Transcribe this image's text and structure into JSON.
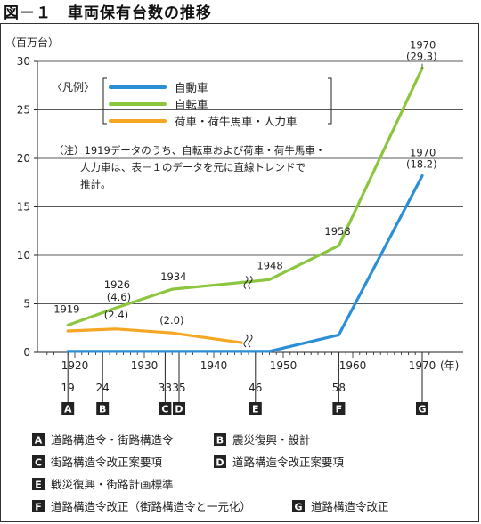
{
  "figure": {
    "title": "図－１　車両保有台数の推移",
    "unit_label": "（百万台）",
    "x_unit_label": "(年)"
  },
  "legend": {
    "open_bracket": "〈凡例〉",
    "items": [
      {
        "label": "自動車",
        "color": "#2a8fd6"
      },
      {
        "label": "自転車",
        "color": "#8cc63f"
      },
      {
        "label": "荷車・荷牛馬車・人力車",
        "color": "#f5a623"
      }
    ]
  },
  "note": {
    "lines": [
      "（注）1919データのうち、自転車および荷車・荷牛馬車・",
      "人力車は、表－１のデータを元に直線トレンドで",
      "推計。"
    ]
  },
  "chart_data": {
    "type": "line",
    "xlim": [
      1915,
      1972
    ],
    "ylim": [
      0,
      30
    ],
    "y_ticks": [
      0,
      5,
      10,
      15,
      20,
      25,
      30
    ],
    "x_ticks": [
      1920,
      1930,
      1940,
      1950,
      1960,
      1970
    ],
    "series": [
      {
        "name": "自動車",
        "color": "#2a8fd6",
        "x": [
          1919,
          1944,
          1948,
          1958,
          1970
        ],
        "y": [
          0.1,
          0.1,
          0.1,
          1.8,
          18.2
        ]
      },
      {
        "name": "自転車",
        "color": "#8cc63f",
        "x": [
          1919,
          1926,
          1934,
          1944,
          1948,
          1958,
          1970
        ],
        "y": [
          2.8,
          4.6,
          6.5,
          7.2,
          7.5,
          11.0,
          29.3
        ]
      },
      {
        "name": "荷車・荷牛馬車・人力車",
        "color": "#f5a623",
        "x": [
          1919,
          1926,
          1934,
          1944
        ],
        "y": [
          2.2,
          2.4,
          2.0,
          1.0
        ]
      }
    ],
    "annotations": [
      {
        "text": "1919",
        "x": 1919,
        "y": 2.8
      },
      {
        "text": "1926",
        "x": 1926,
        "y": 4.6
      },
      {
        "text": "(4.6)",
        "x": 1926,
        "y": 4.6
      },
      {
        "text": "1934",
        "x": 1934,
        "y": 6.5
      },
      {
        "text": "1948",
        "x": 1948,
        "y": 7.5
      },
      {
        "text": "1958",
        "x": 1958,
        "y": 11.0
      },
      {
        "text": "1970",
        "x": 1970,
        "y": 29.3
      },
      {
        "text": "(29.3)",
        "x": 1970,
        "y": 29.3
      },
      {
        "text": "1970",
        "x": 1970,
        "y": 18.2
      },
      {
        "text": "(18.2)",
        "x": 1970,
        "y": 18.2
      },
      {
        "text": "(2.4)",
        "x": 1926,
        "y": 2.4
      },
      {
        "text": "(2.0)",
        "x": 1934,
        "y": 2.0
      }
    ],
    "events": [
      {
        "year": 1919,
        "year_label": "19",
        "letter": "A"
      },
      {
        "year": 1924,
        "year_label": "24",
        "letter": "B"
      },
      {
        "year": 1933,
        "year_label": "33",
        "letter": "C"
      },
      {
        "year": 1935,
        "year_label": "35",
        "letter": "D"
      },
      {
        "year": 1946,
        "year_label": "46",
        "letter": "E"
      },
      {
        "year": 1958,
        "year_label": "58",
        "letter": "F"
      },
      {
        "year": 1970,
        "year_label": "",
        "letter": "G"
      }
    ]
  },
  "events_legend": [
    [
      {
        "letter": "A",
        "text": "道路構造令・街路構造令"
      },
      {
        "letter": "B",
        "text": "震災復興・設計"
      }
    ],
    [
      {
        "letter": "C",
        "text": "街路構造令改正案要項"
      },
      {
        "letter": "D",
        "text": "道路構造令改正案要項"
      }
    ],
    [
      {
        "letter": "E",
        "text": "戦災復興・街路計画標準"
      }
    ],
    [
      {
        "letter": "F",
        "text": "道路構造令改正（街路構造令と一元化）"
      },
      {
        "letter": "G",
        "text": "道路構造令改正"
      }
    ]
  ]
}
